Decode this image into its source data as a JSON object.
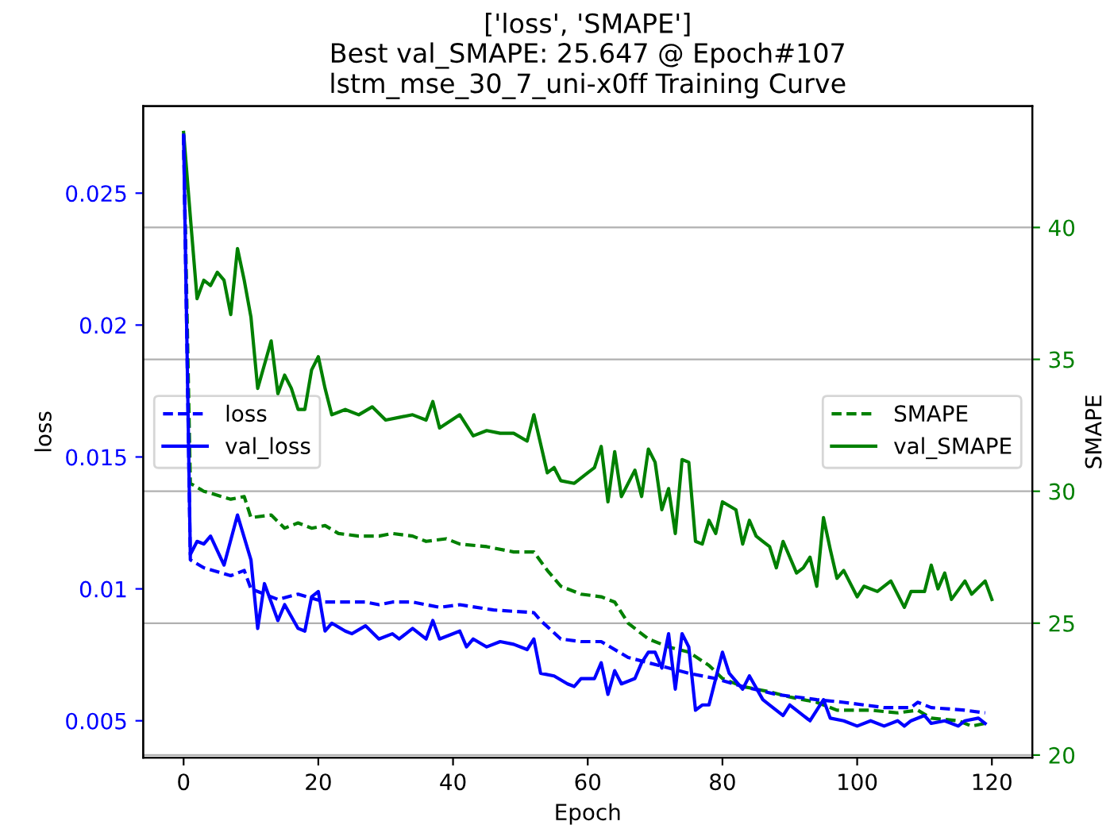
{
  "chart_data": {
    "type": "line",
    "title": "['loss', 'SMAPE']\nBest val_SMAPE: 25.647 @ Epoch#107\nlstm_mse_30_7_uni-x0ff Training Curve",
    "xlabel": "Epoch",
    "ylabel": "loss",
    "y2label": "SMAPE",
    "xlim": [
      -6,
      126
    ],
    "xticks": [
      0,
      20,
      40,
      60,
      80,
      100,
      120
    ],
    "ylim": [
      0.0036,
      0.0283
    ],
    "yticks": [
      0.005,
      0.01,
      0.015,
      0.02,
      0.025
    ],
    "y2lim": [
      19.9,
      44.6
    ],
    "y2ticks": [
      20,
      25,
      30,
      35,
      40
    ],
    "grid": "y",
    "legend": "center",
    "line_style": "solid",
    "marker": "none",
    "series": [
      {
        "name": "loss",
        "color": "#0000ff",
        "line_style": "dashed",
        "x": [
          0,
          1,
          3,
          7,
          9,
          10,
          14,
          17,
          21,
          27,
          29,
          31,
          34,
          38,
          41,
          46,
          52,
          53,
          56,
          59,
          62,
          66,
          69,
          75,
          79,
          83,
          88,
          94,
          98,
          104,
          108,
          109,
          111,
          116,
          119
        ],
        "values": [
          0.0272,
          0.0111,
          0.0108,
          0.0105,
          0.0107,
          0.01,
          0.0096,
          0.0098,
          0.0095,
          0.0095,
          0.0094,
          0.0095,
          0.0095,
          0.0093,
          0.0094,
          0.0092,
          0.0091,
          0.0088,
          0.0081,
          0.008,
          0.008,
          0.0074,
          0.0072,
          0.0068,
          0.0066,
          0.0063,
          0.006,
          0.0058,
          0.0057,
          0.0055,
          0.0055,
          0.0057,
          0.0055,
          0.0054,
          0.0053
        ]
      },
      {
        "name": "val_loss",
        "color": "#0000ff",
        "x": [
          0,
          1,
          2,
          3,
          4,
          6,
          8,
          10,
          11,
          12,
          14,
          15,
          17,
          18,
          19,
          20,
          21,
          22,
          24,
          25,
          27,
          29,
          31,
          32,
          34,
          36,
          37,
          38,
          41,
          42,
          43,
          45,
          47,
          49,
          51,
          52,
          53,
          55,
          57,
          58,
          59,
          61,
          62,
          63,
          64,
          65,
          67,
          68,
          69,
          70,
          71,
          72,
          73,
          74,
          75,
          76,
          77,
          78,
          80,
          81,
          83,
          84,
          86,
          87,
          89,
          90,
          92,
          93,
          95,
          96,
          98,
          100,
          102,
          104,
          106,
          107,
          108,
          110,
          111,
          113,
          115,
          116,
          118,
          119
        ],
        "values": [
          0.0272,
          0.0113,
          0.0118,
          0.0117,
          0.012,
          0.0109,
          0.0128,
          0.0111,
          0.0085,
          0.0102,
          0.0088,
          0.0094,
          0.0085,
          0.0084,
          0.0097,
          0.0099,
          0.0084,
          0.0087,
          0.0084,
          0.0083,
          0.0086,
          0.0081,
          0.0083,
          0.0081,
          0.0085,
          0.0081,
          0.0088,
          0.0081,
          0.0084,
          0.0078,
          0.0081,
          0.0078,
          0.008,
          0.0079,
          0.0077,
          0.0081,
          0.0068,
          0.0067,
          0.0064,
          0.0063,
          0.0066,
          0.0066,
          0.0072,
          0.006,
          0.0069,
          0.0064,
          0.0066,
          0.0072,
          0.0076,
          0.0076,
          0.007,
          0.0083,
          0.0062,
          0.0083,
          0.0078,
          0.0054,
          0.0056,
          0.0056,
          0.0076,
          0.0068,
          0.0062,
          0.0067,
          0.0058,
          0.0056,
          0.0052,
          0.0056,
          0.0052,
          0.005,
          0.0058,
          0.0051,
          0.005,
          0.0048,
          0.005,
          0.0048,
          0.005,
          0.0048,
          0.005,
          0.0052,
          0.0049,
          0.005,
          0.0048,
          0.005,
          0.0051,
          0.0049
        ]
      },
      {
        "name": "SMAPE",
        "color": "#008000",
        "axis": "y2",
        "line_style": "dashed",
        "x": [
          0,
          1,
          3,
          7,
          9,
          10,
          13,
          15,
          17,
          19,
          21,
          23,
          26,
          29,
          31,
          34,
          36,
          39,
          41,
          45,
          49,
          52,
          54,
          56,
          59,
          62,
          64,
          66,
          69,
          72,
          75,
          78,
          80,
          83,
          87,
          90,
          94,
          97,
          102,
          106,
          109,
          111,
          115,
          117,
          119
        ],
        "values": [
          43.5,
          30.3,
          30.0,
          29.7,
          29.8,
          29.0,
          29.1,
          28.6,
          28.8,
          28.6,
          28.7,
          28.4,
          28.3,
          28.3,
          28.4,
          28.3,
          28.1,
          28.2,
          28.0,
          27.9,
          27.7,
          27.7,
          27.0,
          26.4,
          26.1,
          26.0,
          25.8,
          25.0,
          24.4,
          24.1,
          23.9,
          23.4,
          22.9,
          22.6,
          22.4,
          22.2,
          22.0,
          21.7,
          21.7,
          21.6,
          21.7,
          21.4,
          21.3,
          21.1,
          21.2
        ]
      },
      {
        "name": "val_SMAPE",
        "color": "#008000",
        "axis": "y2",
        "x": [
          0,
          1,
          2,
          3,
          4,
          5,
          6,
          7,
          8,
          9,
          10,
          11,
          12,
          13,
          14,
          15,
          16,
          17,
          18,
          19,
          20,
          21,
          22,
          24,
          26,
          28,
          30,
          32,
          34,
          36,
          37,
          38,
          41,
          43,
          45,
          47,
          49,
          51,
          52,
          54,
          55,
          56,
          58,
          60,
          61,
          62,
          63,
          64,
          65,
          67,
          68,
          69,
          70,
          71,
          72,
          73,
          74,
          75,
          76,
          77,
          78,
          79,
          80,
          82,
          83,
          84,
          85,
          86,
          87,
          88,
          89,
          91,
          92,
          93,
          94,
          95,
          96,
          97,
          98,
          100,
          101,
          103,
          105,
          107,
          108,
          110,
          111,
          112,
          113,
          114,
          116,
          117,
          119,
          120
        ],
        "values": [
          43.6,
          40.4,
          37.3,
          38.0,
          37.8,
          38.3,
          38.0,
          36.7,
          39.2,
          38.0,
          36.6,
          33.9,
          34.8,
          35.7,
          33.7,
          34.4,
          33.9,
          33.1,
          33.1,
          34.6,
          35.1,
          33.9,
          32.9,
          33.1,
          32.9,
          33.2,
          32.7,
          32.8,
          32.9,
          32.7,
          33.4,
          32.4,
          32.9,
          32.1,
          32.3,
          32.2,
          32.2,
          31.9,
          32.9,
          30.7,
          30.9,
          30.4,
          30.3,
          30.7,
          30.9,
          31.7,
          29.6,
          31.5,
          29.8,
          30.8,
          29.8,
          31.6,
          31.1,
          29.3,
          30.1,
          28.4,
          31.2,
          31.1,
          28.1,
          28.0,
          28.9,
          28.4,
          29.6,
          29.3,
          28.0,
          28.9,
          28.3,
          28.1,
          27.9,
          27.1,
          28.1,
          26.9,
          27.1,
          27.5,
          26.4,
          29.0,
          27.8,
          26.7,
          27.0,
          26.0,
          26.4,
          26.2,
          26.6,
          25.6,
          26.2,
          26.2,
          27.2,
          26.3,
          26.9,
          25.9,
          26.6,
          26.1,
          26.6,
          25.9
        ]
      }
    ]
  }
}
